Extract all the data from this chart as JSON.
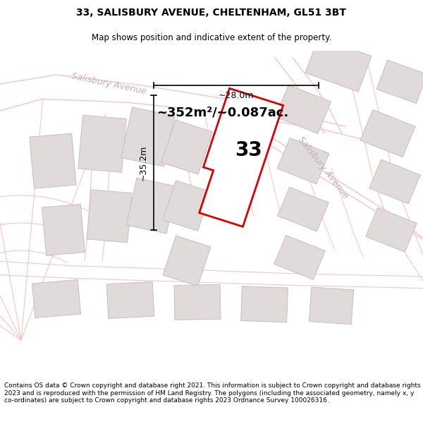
{
  "title": "33, SALISBURY AVENUE, CHELTENHAM, GL51 3BT",
  "subtitle": "Map shows position and indicative extent of the property.",
  "footer": "Contains OS data © Crown copyright and database right 2021. This information is subject to Crown copyright and database rights 2023 and is reproduced with the permission of HM Land Registry. The polygons (including the associated geometry, namely x, y co-ordinates) are subject to Crown copyright and database rights 2023 Ordnance Survey 100026316.",
  "area_label": "~352m²/~0.087ac.",
  "width_label": "~28.0m",
  "height_label": "~35.2m",
  "plot_number": "33",
  "map_bg": "#ffffff",
  "road_color": "#f5c5c5",
  "building_fill": "#e0dada",
  "building_outline": "#c8bebe",
  "plot_outline": "#dd0000",
  "street_label_color": "#c0b0b0",
  "title_fontsize": 10,
  "subtitle_fontsize": 8.5,
  "footer_fontsize": 6.5
}
